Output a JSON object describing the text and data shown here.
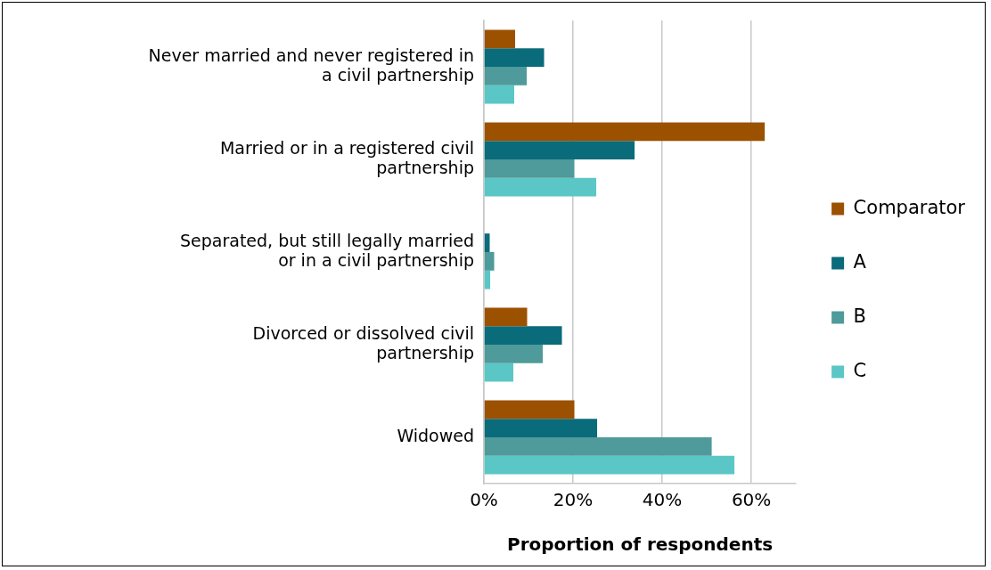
{
  "chart_data": {
    "type": "bar",
    "orientation": "horizontal",
    "xlabel": "Proportion of respondents",
    "categories": [
      "Never married and never registered in a civil partnership",
      "Married or in a registered civil partnership",
      "Separated, but still legally married or in a civil partnership",
      "Divorced or dissolved civil partnership",
      "Widowed"
    ],
    "series": [
      {
        "name": "Comparator",
        "color": "#9c5100",
        "values": [
          7,
          63,
          0,
          9.7,
          20.3
        ]
      },
      {
        "name": "A",
        "color": "#0a6b7a",
        "values": [
          13.5,
          33.8,
          1.3,
          17.5,
          25.4
        ]
      },
      {
        "name": "B",
        "color": "#4f9a9a",
        "values": [
          9.6,
          20.3,
          2.3,
          13.2,
          51.1
        ]
      },
      {
        "name": "C",
        "color": "#5bc6c6",
        "values": [
          6.8,
          25.2,
          1.4,
          6.6,
          56.2
        ]
      }
    ],
    "xlim": [
      0,
      70
    ],
    "xticks": [
      {
        "value": 0,
        "label": "0%"
      },
      {
        "value": 20,
        "label": "20%"
      },
      {
        "value": 40,
        "label": "40%"
      },
      {
        "value": 60,
        "label": "60%"
      }
    ],
    "grid": "x",
    "legend": "right"
  }
}
